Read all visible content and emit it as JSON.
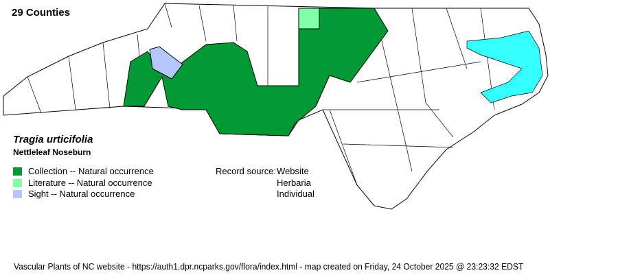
{
  "header": {
    "county_count": "29 Counties"
  },
  "species": {
    "scientific_name": "Tragia urticifolia",
    "common_name": "Nettleleaf Noseburn"
  },
  "legend": [
    {
      "label": "Collection -- Natural occurrence",
      "color": "#009933"
    },
    {
      "label": "Literature -- Natural occurrence",
      "color": "#80ffa8"
    },
    {
      "label": "Sight -- Natural occurrence",
      "color": "#b3c6ff"
    }
  ],
  "record_source": {
    "label": "Record source:",
    "values": [
      "Website",
      "Herbaria",
      "Individual"
    ]
  },
  "map": {
    "state_fill": "#ffffff",
    "water_color": "#33ffff"
  },
  "footer": "Vascular Plants of NC website - https://auth1.dpr.ncparks.gov/flora/index.html - map created on Friday, 24 October 2025 @ 23:23:32 EDST"
}
